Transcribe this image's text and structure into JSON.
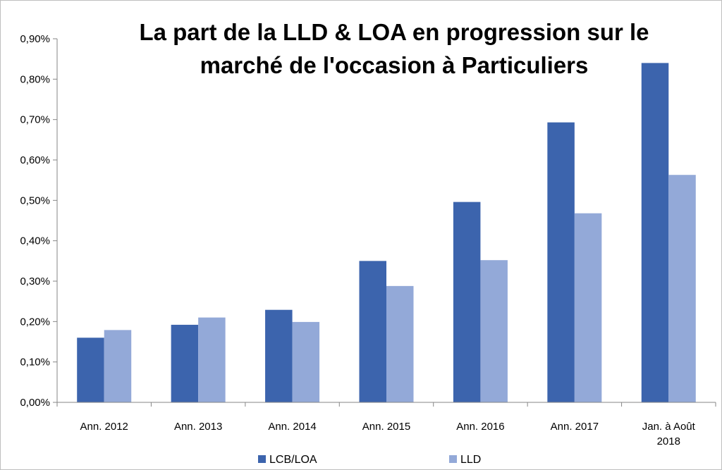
{
  "chart_data": {
    "type": "bar",
    "title_lines": [
      "La part de la LLD & LOA en progression sur le",
      "marché de l'occasion à Particuliers"
    ],
    "categories": [
      [
        "Ann. 2012"
      ],
      [
        "Ann. 2013"
      ],
      [
        "Ann. 2014"
      ],
      [
        "Ann. 2015"
      ],
      [
        "Ann. 2016"
      ],
      [
        "Ann. 2017"
      ],
      [
        "Jan. à  Août",
        "2018"
      ]
    ],
    "series": [
      {
        "name": "LCB/LOA",
        "color": "#3c64ad",
        "values": [
          0.16,
          0.192,
          0.229,
          0.35,
          0.496,
          0.693,
          0.84
        ]
      },
      {
        "name": "LLD",
        "color": "#93a9d8",
        "values": [
          0.179,
          0.21,
          0.199,
          0.288,
          0.352,
          0.468,
          0.563
        ]
      }
    ],
    "ylim": [
      0,
      0.9
    ],
    "yticks": [
      "0,00%",
      "0,10%",
      "0,20%",
      "0,30%",
      "0,40%",
      "0,50%",
      "0,60%",
      "0,70%",
      "0,80%",
      "0,90%"
    ],
    "grid": false,
    "legend_position": "bottom"
  }
}
